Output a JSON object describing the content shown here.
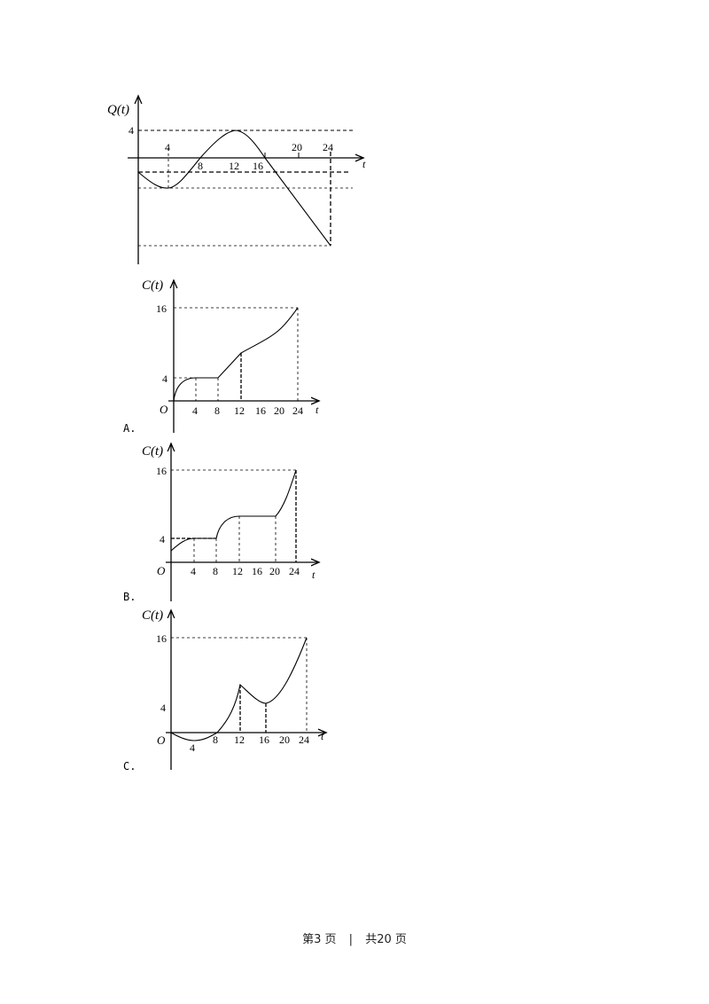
{
  "figures": {
    "q_graph": {
      "y_label": "Q(t)",
      "x_label": "t",
      "y_tick": "4",
      "x_ticks": [
        "4",
        "8",
        "12",
        "16",
        "20",
        "24"
      ]
    },
    "options": [
      {
        "option_label": "A.",
        "y_label": "C(t)",
        "x_label": "t",
        "origin_label": "O",
        "y_ticks": [
          "16",
          "4"
        ],
        "x_ticks": [
          "4",
          "8",
          "12",
          "16",
          "20",
          "24"
        ]
      },
      {
        "option_label": "B.",
        "y_label": "C(t)",
        "x_label": "t",
        "origin_label": "O",
        "y_ticks": [
          "16",
          "4"
        ],
        "x_ticks": [
          "4",
          "8",
          "12",
          "16",
          "20",
          "24"
        ]
      },
      {
        "option_label": "C.",
        "y_label": "C(t)",
        "x_label": "t",
        "origin_label": "O",
        "y_ticks": [
          "16",
          "4"
        ],
        "x_ticks": [
          "4",
          "8",
          "12",
          "16",
          "20",
          "24"
        ]
      }
    ]
  },
  "footer": {
    "page": "第3 页",
    "separator": "|",
    "total": "共20 页"
  }
}
